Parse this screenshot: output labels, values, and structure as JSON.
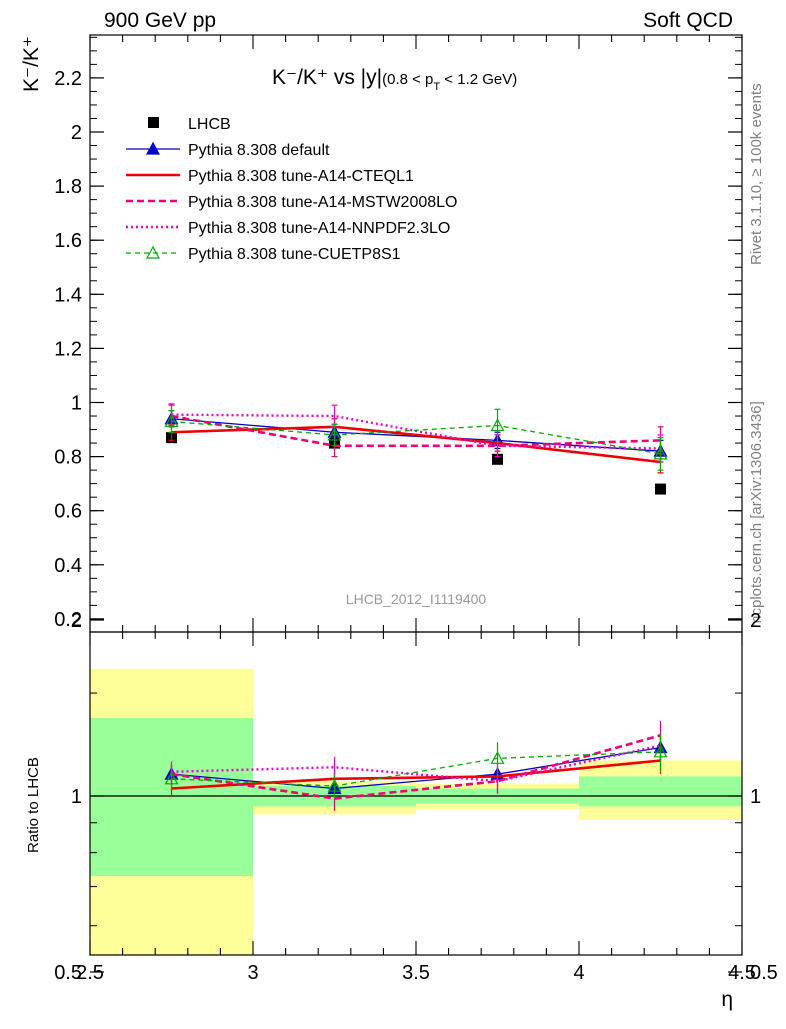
{
  "header": {
    "left": "900 GeV pp",
    "right": "Soft QCD"
  },
  "side": {
    "rivet": "Rivet 3.1.10, ≥ 100k events",
    "mcplots": "mcplots.cern.ch [arXiv:1306.3436]"
  },
  "chart_data": [
    {
      "type": "scatter",
      "title": "K⁻/K⁺ vs |y|(0.8 < p_T < 1.2 GeV)",
      "title_main": "K⁻/K⁺ vs |y|",
      "title_sub": "(0.8 < p",
      "title_sub_t": "T",
      "title_sub_end": " < 1.2 GeV)",
      "ylabel": "K⁻/K⁺",
      "xlabel": "η",
      "xlim": [
        2.5,
        4.5
      ],
      "ylim": [
        0.17,
        2.35
      ],
      "yticks": [
        "0.2",
        "0.4",
        "0.6",
        "0.8",
        "1",
        "1.2",
        "1.4",
        "1.6",
        "1.8",
        "2",
        "2.2"
      ],
      "analysis_id": "LHCB_2012_I1119400",
      "legend_position": "top-left",
      "x": [
        2.75,
        3.25,
        3.75,
        4.25
      ],
      "series": [
        {
          "name": "LHCB",
          "color": "#000000",
          "style": "marker-square",
          "values": [
            0.87,
            0.85,
            0.79,
            0.68
          ],
          "err": [
            0.0,
            0.0,
            0.0,
            0.0
          ]
        },
        {
          "name": "Pythia 8.308 default",
          "color": "#0000cc",
          "style": "solid-thin",
          "marker": "triangle",
          "values": [
            0.94,
            0.89,
            0.86,
            0.82
          ],
          "err": [
            0.03,
            0.03,
            0.03,
            0.04
          ]
        },
        {
          "name": "Pythia 8.308 tune-A14-CTEQL1",
          "color": "#ee0000",
          "style": "solid-thick",
          "values": [
            0.89,
            0.91,
            0.85,
            0.78
          ],
          "err": [
            0.03,
            0.03,
            0.03,
            0.04
          ]
        },
        {
          "name": "Pythia 8.308 tune-A14-MSTW2008LO",
          "color": "#ee0077",
          "style": "dashed",
          "values": [
            0.95,
            0.84,
            0.84,
            0.86
          ],
          "err": [
            0.04,
            0.04,
            0.04,
            0.05
          ]
        },
        {
          "name": "Pythia 8.308 tune-A14-NNPDF2.3LO",
          "color": "#ee00cc",
          "style": "dotted",
          "values": [
            0.955,
            0.95,
            0.84,
            0.83
          ],
          "err": [
            0.04,
            0.04,
            0.04,
            0.05
          ]
        },
        {
          "name": "Pythia 8.308 tune-CUETP8S1",
          "color": "#00aa00",
          "style": "dashed-thin",
          "marker": "open-triangle",
          "values": [
            0.93,
            0.88,
            0.915,
            0.81
          ],
          "err": [
            0.04,
            0.04,
            0.06,
            0.06
          ]
        }
      ]
    },
    {
      "type": "scatter",
      "ylabel": "Ratio to LHCB",
      "xlabel": "η",
      "xlim": [
        2.5,
        4.5
      ],
      "ylim": [
        0.43,
        2.35
      ],
      "ylog": true,
      "xticks": [
        "2.5",
        "3",
        "3.5",
        "4",
        "4.5"
      ],
      "yticks": [
        "0.5",
        "1",
        "2"
      ],
      "reference_bands": [
        {
          "x0": 2.5,
          "x1": 3.0,
          "inner": [
            0.73,
            1.36
          ],
          "outer": [
            0.43,
            1.65
          ]
        },
        {
          "x0": 3.0,
          "x1": 3.5,
          "inner": [
            0.96,
            1.04
          ],
          "outer": [
            0.93,
            1.06
          ]
        },
        {
          "x0": 3.5,
          "x1": 4.0,
          "inner": [
            0.97,
            1.03
          ],
          "outer": [
            0.95,
            1.05
          ]
        },
        {
          "x0": 4.0,
          "x1": 4.5,
          "inner": [
            0.96,
            1.08
          ],
          "outer": [
            0.91,
            1.15
          ]
        }
      ],
      "x": [
        2.75,
        3.25,
        3.75,
        4.25
      ],
      "series": [
        {
          "name": "Pythia 8.308 default",
          "values": [
            1.09,
            1.03,
            1.09,
            1.21
          ]
        },
        {
          "name": "Pythia 8.308 tune-A14-CTEQL1",
          "values": [
            1.03,
            1.07,
            1.08,
            1.15
          ]
        },
        {
          "name": "Pythia 8.308 tune-A14-MSTW2008LO",
          "values": [
            1.09,
            0.99,
            1.06,
            1.27
          ]
        },
        {
          "name": "Pythia 8.308 tune-A14-NNPDF2.3LO",
          "values": [
            1.1,
            1.12,
            1.06,
            1.22
          ]
        },
        {
          "name": "Pythia 8.308 tune-CUETP8S1",
          "values": [
            1.07,
            1.04,
            1.16,
            1.19
          ]
        }
      ]
    }
  ]
}
